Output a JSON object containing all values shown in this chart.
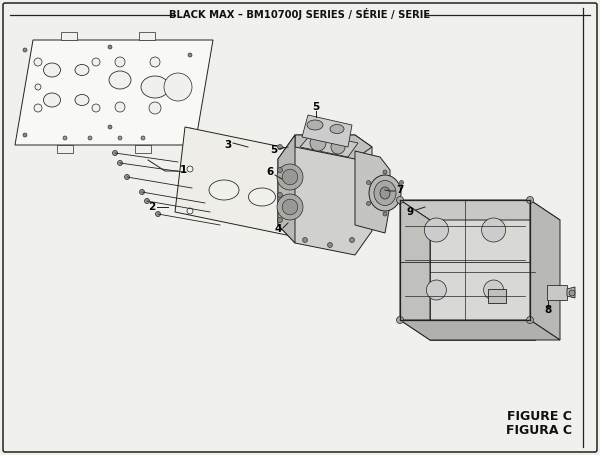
{
  "title": "BLACK MAX – BM10700J SERIES / SÉRIE / SERIE",
  "figure_label": "FIGURE C",
  "figura_label": "FIGURA C",
  "bg_color": "#f0f0ec",
  "border_color": "#222222",
  "line_color": "#222222"
}
